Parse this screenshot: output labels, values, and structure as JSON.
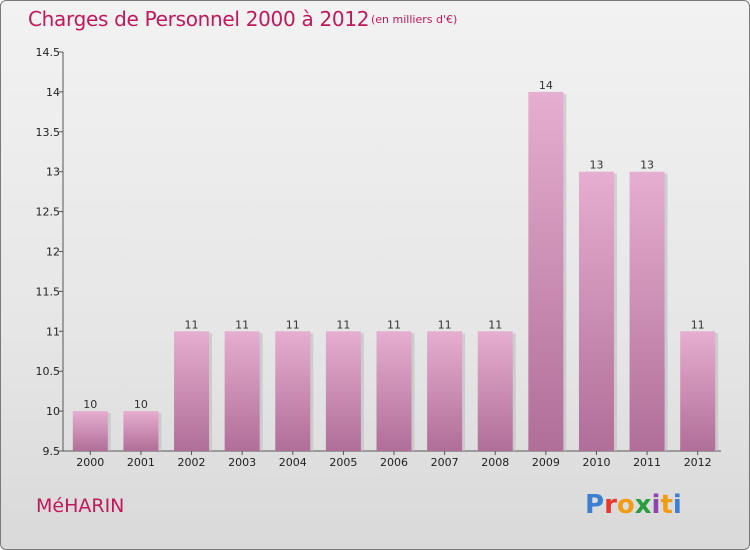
{
  "header": {
    "title": "Charges de Personnel 2000 à 2012",
    "subtitle": "(en milliers d'€)"
  },
  "footer": {
    "city": "MéHARIN",
    "logo": "Proxiti",
    "logo_colors": [
      "#3b7fd4",
      "#e8372c",
      "#f39c12",
      "#2a9d3f",
      "#8e44ad",
      "#f39c12",
      "#3b7fd4"
    ]
  },
  "chart_data": {
    "type": "bar",
    "categories": [
      "2000",
      "2001",
      "2002",
      "2003",
      "2004",
      "2005",
      "2006",
      "2007",
      "2008",
      "2009",
      "2010",
      "2011",
      "2012"
    ],
    "values": [
      10,
      10,
      11,
      11,
      11,
      11,
      11,
      11,
      11,
      14,
      13,
      13,
      11
    ],
    "data_labels": [
      "10",
      "10",
      "11",
      "11",
      "11",
      "11",
      "11",
      "11",
      "11",
      "14",
      "13",
      "13",
      "11"
    ],
    "yticks": [
      "9.5",
      "10",
      "10.5",
      "11",
      "11.5",
      "12",
      "12.5",
      "13",
      "13.5",
      "14",
      "14.5"
    ],
    "ylim": [
      9.5,
      14.5
    ],
    "grid": false,
    "bar_color": "#d994b9",
    "bar_color_light": "#e6aed0",
    "bar_color_dark": "#b06e98"
  }
}
